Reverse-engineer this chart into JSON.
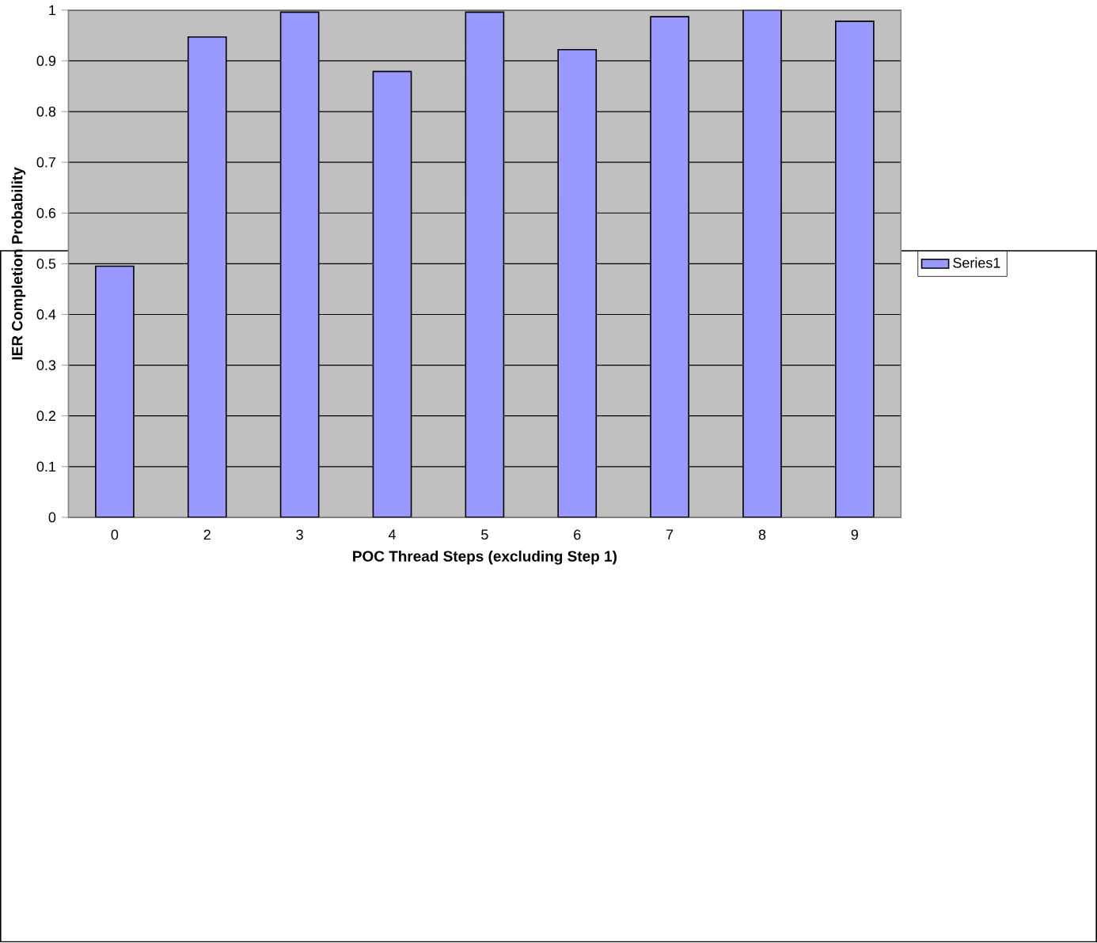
{
  "chart_data": {
    "type": "bar",
    "xlabel": "POC Thread Steps (excluding Step 1)",
    "ylabel": "IER Completion Probability",
    "categories": [
      "0",
      "2",
      "3",
      "4",
      "5",
      "6",
      "7",
      "8",
      "9"
    ],
    "series": [
      {
        "name": "Series1",
        "color": "#9999ff",
        "values": [
          0.495,
          0.947,
          0.996,
          0.879,
          0.996,
          0.922,
          0.987,
          1.0,
          0.978
        ]
      }
    ],
    "ylim": [
      0,
      1
    ],
    "yticks": [
      0,
      0.1,
      0.2,
      0.3,
      0.4,
      0.5,
      0.6,
      0.7,
      0.8,
      0.9,
      1
    ],
    "grid": "y",
    "legend": "right"
  }
}
